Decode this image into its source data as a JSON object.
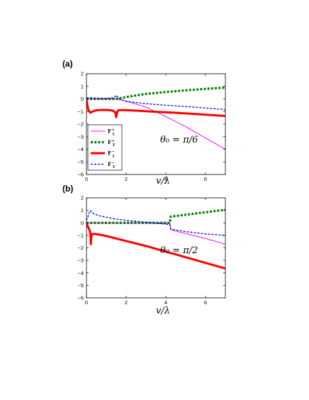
{
  "chart_data": [
    {
      "type": "line",
      "panel_label": "(a)",
      "annotation": "θ₀ = π/6",
      "xlabel": "v/λ",
      "ylabel": "",
      "xlim": [
        0,
        7
      ],
      "ylim": [
        -6,
        2
      ],
      "xticks": [
        0,
        2,
        4,
        6
      ],
      "yticks": [
        -6,
        -5,
        -4,
        -3,
        -2,
        -1,
        0,
        1,
        2
      ],
      "grid": false,
      "legend": {
        "placement": "bottom-left"
      },
      "series": [
        {
          "name": "F_L^+",
          "legend_main": "F",
          "legend_sup": "+",
          "legend_sub": "L",
          "color": "#ff00ff",
          "style": "solid",
          "x": [
            0,
            1.5,
            2.0,
            3.0,
            4.0,
            5.0,
            6.0,
            7.0
          ],
          "y": [
            0,
            0,
            -0.16,
            -0.65,
            -1.4,
            -2.2,
            -3.1,
            -4.0
          ]
        },
        {
          "name": "F_T^+",
          "legend_main": "F",
          "legend_sup": "+",
          "legend_sub": "T",
          "color": "#008000",
          "style": "dotted",
          "x": [
            0,
            1.5,
            2.0,
            3.0,
            4.0,
            5.0,
            6.0,
            7.0
          ],
          "y": [
            0,
            0,
            0.15,
            0.4,
            0.55,
            0.68,
            0.8,
            0.9
          ]
        },
        {
          "name": "F_L^-",
          "legend_main": "F",
          "legend_sup": "−",
          "legend_sub": "L",
          "color": "#ff0000",
          "style": "thick",
          "x": [
            0,
            0.05,
            0.1,
            0.2,
            0.3,
            0.5,
            0.8,
            1.1,
            1.3,
            1.45,
            1.5,
            1.55,
            1.6,
            1.8,
            2.5,
            3.5,
            4.5,
            5.5,
            6.5,
            7.0
          ],
          "y": [
            -0.1,
            -0.5,
            -0.9,
            -1.1,
            -1.0,
            -0.9,
            -0.87,
            -0.88,
            -0.92,
            -1.05,
            -1.45,
            -1.05,
            -0.9,
            -0.88,
            -0.93,
            -1.02,
            -1.1,
            -1.2,
            -1.3,
            -1.35
          ]
        },
        {
          "name": "F_T^-",
          "legend_main": "F",
          "legend_sup": "−",
          "legend_sub": "T",
          "color": "#0000ff",
          "style": "dashed",
          "x": [
            0,
            0.1,
            0.3,
            0.7,
            1.1,
            1.4,
            1.5,
            1.6,
            2.0,
            3.0,
            4.0,
            5.0,
            6.0,
            7.0
          ],
          "y": [
            0.05,
            0.12,
            0.08,
            0.05,
            0.05,
            0.1,
            0.3,
            0.05,
            -0.2,
            -0.38,
            -0.5,
            -0.6,
            -0.72,
            -0.85
          ]
        }
      ]
    },
    {
      "type": "line",
      "panel_label": "(b)",
      "annotation": "θ₀ = π/2",
      "xlabel": "v/λ",
      "ylabel": "",
      "xlim": [
        0,
        7
      ],
      "ylim": [
        -6,
        2
      ],
      "xticks": [
        0,
        2,
        4,
        6
      ],
      "yticks": [
        -6,
        -5,
        -4,
        -3,
        -2,
        -1,
        0,
        1,
        2
      ],
      "grid": false,
      "series": [
        {
          "name": "F_L^+",
          "color": "#ff00ff",
          "style": "solid",
          "x": [
            0,
            4.2,
            4.25,
            5.0,
            6.0,
            7.0
          ],
          "y": [
            0,
            0,
            -0.55,
            -0.85,
            -1.25,
            -1.7
          ]
        },
        {
          "name": "F_T^+",
          "color": "#008000",
          "style": "dotted",
          "x": [
            0,
            4.2,
            4.25,
            5.0,
            6.0,
            7.0
          ],
          "y": [
            0,
            0,
            0.5,
            0.65,
            0.85,
            1.05
          ]
        },
        {
          "name": "F_L^-",
          "color": "#ff0000",
          "style": "thick",
          "x": [
            0,
            0.05,
            0.1,
            0.15,
            0.2,
            0.22,
            0.25,
            0.3,
            0.4,
            0.6,
            1.0,
            2.0,
            3.0,
            4.0,
            5.0,
            6.0,
            7.0
          ],
          "y": [
            0,
            -0.2,
            -0.4,
            -0.55,
            -0.85,
            -1.7,
            -1.0,
            -0.9,
            -0.88,
            -0.92,
            -1.05,
            -1.45,
            -1.85,
            -2.3,
            -2.75,
            -3.2,
            -3.65
          ]
        },
        {
          "name": "F_T^-",
          "color": "#0000ff",
          "style": "dashed",
          "x": [
            0,
            0.1,
            0.15,
            0.2,
            0.25,
            0.4,
            0.7,
            1.0,
            1.5,
            2.0,
            3.0,
            4.0,
            4.2,
            4.25,
            5.0,
            6.0,
            7.0
          ],
          "y": [
            0.2,
            0.6,
            0.85,
            1.0,
            0.85,
            0.7,
            0.55,
            0.45,
            0.3,
            0.2,
            0.05,
            -0.1,
            -0.15,
            -0.5,
            -0.7,
            -0.88,
            -1.0
          ]
        }
      ]
    }
  ]
}
